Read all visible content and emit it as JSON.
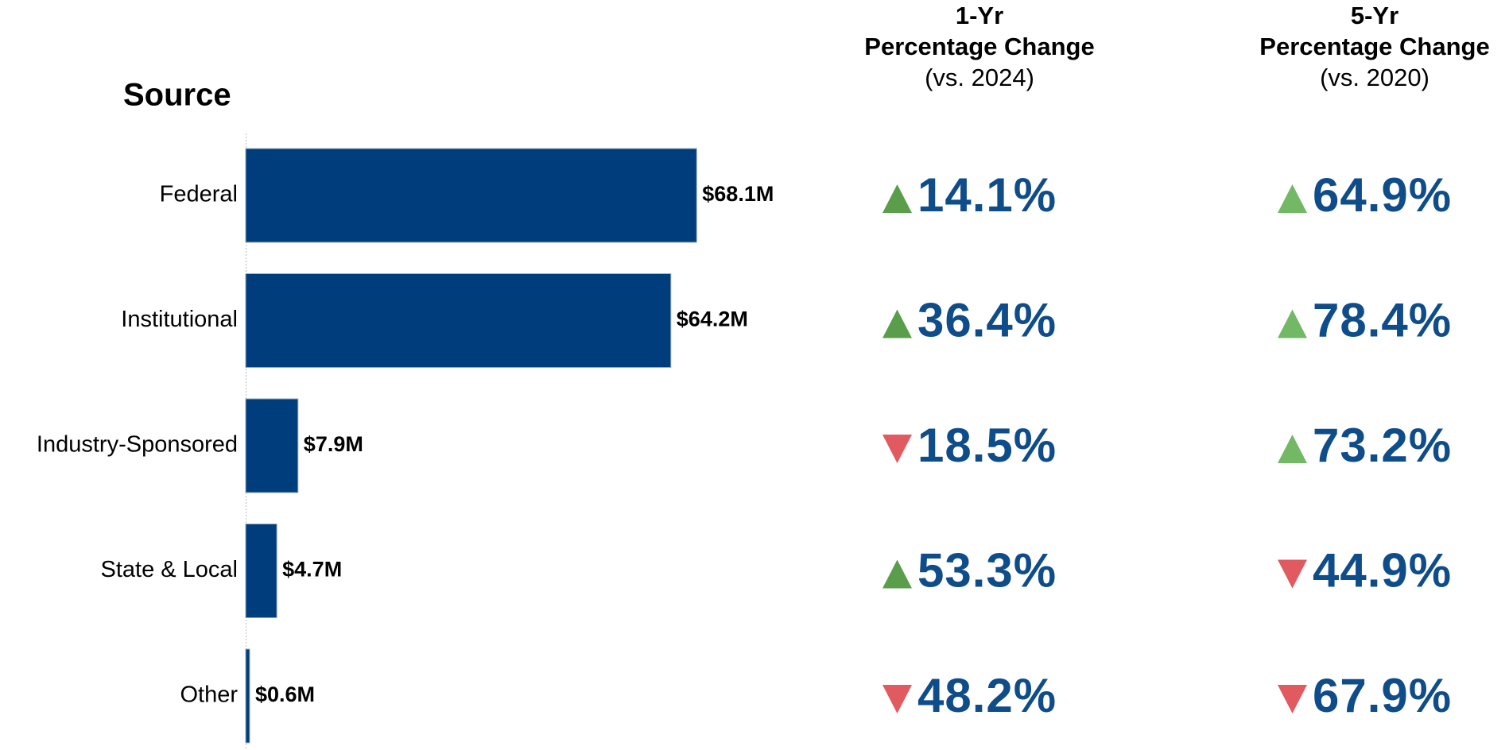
{
  "chart_data": {
    "type": "bar",
    "title": "Source",
    "categories": [
      "Federal",
      "Institutional",
      "Industry-Sponsored",
      "State & Local",
      "Other"
    ],
    "values": [
      68.1,
      64.2,
      7.9,
      4.7,
      0.6
    ],
    "value_labels": [
      "$68.1M",
      "$64.2M",
      "$7.9M",
      "$4.7M",
      "$0.6M"
    ],
    "color": "#003d7c",
    "columns": [
      {
        "header": [
          "1-Yr",
          "Percentage Change",
          "(vs. 2024)"
        ],
        "values": [
          14.1,
          36.4,
          -18.5,
          53.3,
          -48.2
        ],
        "value_labels": [
          "14.1%",
          "36.4%",
          "18.5%",
          "53.3%",
          "48.2%"
        ],
        "up_color": "#5a9e4b",
        "down_color": "#e05a5f"
      },
      {
        "header": [
          "5-Yr",
          "Percentage Change",
          "(vs. 2020)"
        ],
        "values": [
          64.9,
          78.4,
          73.2,
          -44.9,
          -67.9
        ],
        "value_labels": [
          "64.9%",
          "78.4%",
          "73.2%",
          "44.9%",
          "67.9%"
        ],
        "up_color": "#72b865",
        "down_color": "#e05a5f"
      }
    ]
  }
}
